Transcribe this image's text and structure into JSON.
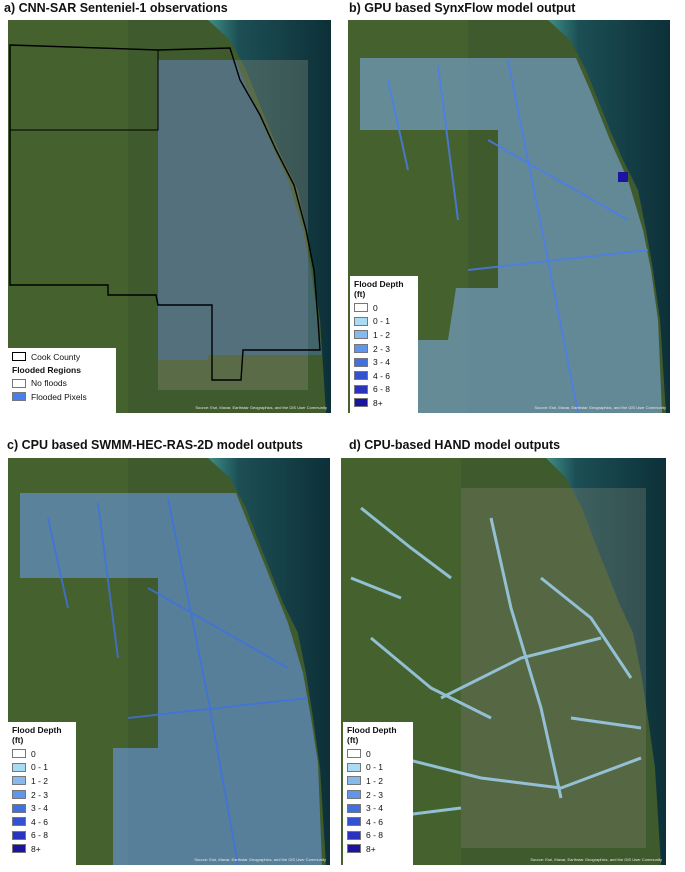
{
  "panels": [
    {
      "title": "a) CNN-SAR Senteniel-1 observations",
      "attribution": "Source: Esri, Maxar, Earthstar Geographics, and the GIS User Community",
      "legend": {
        "county_label": "Cook County",
        "title": "Flooded Regions",
        "items": [
          {
            "label": "No floods",
            "color": "#ffffff"
          },
          {
            "label": "Flooded Pixels",
            "color": "#4a7df0"
          }
        ]
      }
    },
    {
      "title": "b) GPU based SynxFlow model output",
      "attribution": "Source: Esri, Maxar, Earthstar Geographics, and the GIS User Community",
      "legend": {
        "title": "Flood Depth (ft)",
        "items": [
          {
            "label": "0",
            "color": "#ffffff"
          },
          {
            "label": "0 - 1",
            "color": "#a9dcf2"
          },
          {
            "label": "1 - 2",
            "color": "#86b9ee"
          },
          {
            "label": "2 - 3",
            "color": "#5f95ea"
          },
          {
            "label": "3 - 4",
            "color": "#3f72e0"
          },
          {
            "label": "4 - 6",
            "color": "#3352d2"
          },
          {
            "label": "6 - 8",
            "color": "#2a33bd"
          },
          {
            "label": "8+",
            "color": "#1a14a0"
          }
        ]
      }
    },
    {
      "title": "c) CPU based SWMM-HEC-RAS-2D model outputs",
      "attribution": "Source: Esri, Maxar, Earthstar Geographics, and the GIS User Community",
      "legend": {
        "title": "Flood Depth (ft)",
        "items": [
          {
            "label": "0",
            "color": "#ffffff"
          },
          {
            "label": "0 - 1",
            "color": "#a9dcf2"
          },
          {
            "label": "1 - 2",
            "color": "#86b9ee"
          },
          {
            "label": "2 - 3",
            "color": "#5f95ea"
          },
          {
            "label": "3 - 4",
            "color": "#3f72e0"
          },
          {
            "label": "4 - 6",
            "color": "#3352d2"
          },
          {
            "label": "6 - 8",
            "color": "#2a33bd"
          },
          {
            "label": "8+",
            "color": "#1a14a0"
          }
        ]
      }
    },
    {
      "title": "d) CPU-based HAND model outputs",
      "attribution": "Source: Esri, Maxar, Earthstar Geographics, and the GIS User Community",
      "legend": {
        "title": "Flood Depth (ft)",
        "items": [
          {
            "label": "0",
            "color": "#ffffff"
          },
          {
            "label": "0 - 1",
            "color": "#a9dcf2"
          },
          {
            "label": "1 - 2",
            "color": "#86b9ee"
          },
          {
            "label": "2 - 3",
            "color": "#5f95ea"
          },
          {
            "label": "3 - 4",
            "color": "#3f72e0"
          },
          {
            "label": "4 - 6",
            "color": "#3352d2"
          },
          {
            "label": "6 - 8",
            "color": "#2a33bd"
          },
          {
            "label": "8+",
            "color": "#1a14a0"
          }
        ]
      }
    }
  ],
  "colors": {
    "land": "#3f5a2c",
    "lake": "#0f3a42",
    "lake_shallow": "#3f8f86",
    "urban": "#8a8c7a",
    "flood": "#4a7df0",
    "flood_light": "#9fd0f0"
  }
}
